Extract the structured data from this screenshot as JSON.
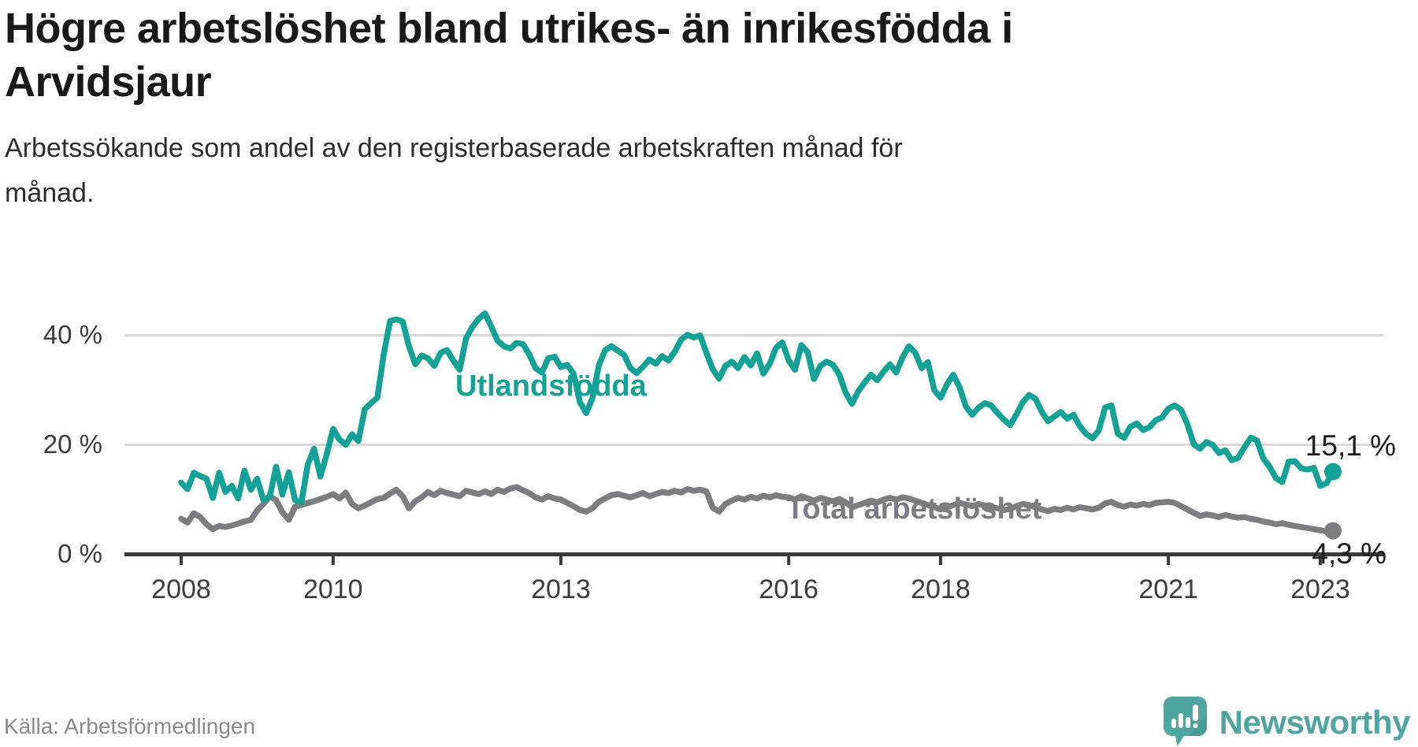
{
  "header": {
    "title_line1": "Högre arbetslöshet bland utrikes- än inrikesfödda i",
    "title_line2": "Arvidsjaur",
    "subtitle_line1": "Arbetssökande som andel av den registerbaserade arbetskraften månad för",
    "subtitle_line2": "månad."
  },
  "footer": {
    "source": "Källa: Arbetsförmedlingen"
  },
  "logo": {
    "text": "Newsworthy",
    "color": "#4fa5a0"
  },
  "chart_data": {
    "type": "line",
    "title": "Högre arbetslöshet bland utrikes- än inrikesfödda i Arvidsjaur",
    "subtitle": "Arbetssökande som andel av den registerbaserade arbetskraften månad för månad.",
    "x_start": "2008-01",
    "x_end": "2023-03",
    "x_unit": "month",
    "grid": "horizontal",
    "ylim": [
      0,
      46
    ],
    "y_ticks": [
      {
        "label": "0 %",
        "value": 0
      },
      {
        "label": "20 %",
        "value": 20
      },
      {
        "label": "40 %",
        "value": 40
      }
    ],
    "x_ticks": [
      {
        "label": "2008",
        "year": 2008
      },
      {
        "label": "2010",
        "year": 2010
      },
      {
        "label": "2013",
        "year": 2013
      },
      {
        "label": "2016",
        "year": 2016
      },
      {
        "label": "2018",
        "year": 2018
      },
      {
        "label": "2021",
        "year": 2021
      },
      {
        "label": "2023",
        "year": 2023
      }
    ],
    "series": [
      {
        "name": "Utlandsfödda",
        "color": "#14a196",
        "end_label": "15,1 %",
        "end_value": 15.1,
        "values": [
          13.1,
          11.9,
          14.9,
          14.3,
          13.8,
          10.3,
          14.9,
          11.4,
          12.5,
          10.2,
          15.3,
          11.8,
          13.8,
          9.9,
          10.6,
          16.0,
          10.9,
          15.0,
          9.9,
          9.5,
          16.4,
          19.3,
          14.2,
          18.3,
          22.9,
          21.0,
          20.0,
          21.9,
          20.7,
          26.5,
          27.6,
          28.6,
          36.5,
          42.6,
          42.9,
          42.5,
          38.0,
          34.7,
          36.3,
          35.8,
          34.4,
          36.8,
          37.3,
          35.4,
          33.7,
          39.4,
          41.5,
          43.0,
          44.0,
          41.6,
          39.0,
          38.0,
          37.6,
          38.6,
          38.4,
          36.5,
          34.0,
          33.2,
          35.8,
          36.1,
          34.2,
          34.6,
          33.0,
          27.8,
          25.8,
          28.5,
          34.5,
          37.3,
          38.0,
          37.2,
          36.4,
          34.0,
          33.1,
          34.3,
          35.6,
          34.8,
          36.2,
          35.4,
          37.0,
          39.2,
          40.1,
          39.6,
          40.0,
          36.8,
          33.8,
          32.1,
          34.4,
          35.2,
          34.0,
          36.0,
          34.5,
          36.7,
          33.0,
          34.8,
          37.7,
          38.7,
          35.4,
          33.7,
          38.2,
          36.9,
          32.0,
          34.4,
          35.2,
          34.6,
          32.8,
          29.5,
          27.5,
          29.8,
          31.4,
          32.8,
          31.8,
          33.4,
          34.7,
          33.2,
          36.0,
          38.0,
          36.8,
          34.0,
          35.1,
          30.0,
          28.6,
          31.0,
          32.8,
          30.5,
          27.0,
          25.5,
          26.8,
          27.6,
          27.2,
          25.8,
          24.6,
          23.6,
          25.6,
          27.8,
          29.1,
          28.4,
          26.0,
          24.3,
          25.2,
          26.0,
          24.8,
          25.5,
          23.4,
          22.0,
          21.2,
          22.6,
          26.8,
          27.2,
          22.0,
          21.3,
          23.3,
          23.9,
          22.7,
          23.2,
          24.5,
          25.0,
          26.6,
          27.2,
          26.4,
          23.8,
          20.1,
          19.3,
          20.5,
          20.0,
          18.5,
          19.0,
          17.2,
          17.6,
          19.5,
          21.3,
          20.8,
          17.5,
          16.0,
          13.9,
          13.2,
          16.9,
          17.0,
          15.7,
          15.5,
          15.8,
          12.5,
          13.0,
          15.1
        ]
      },
      {
        "name": "Total arbetslöshet",
        "color": "#7d7d81",
        "end_label": "4,3 %",
        "end_value": 4.3,
        "values": [
          6.5,
          5.8,
          7.5,
          6.8,
          5.5,
          4.6,
          5.2,
          5.0,
          5.3,
          5.6,
          6.0,
          6.3,
          8.0,
          9.2,
          10.6,
          9.9,
          7.7,
          6.3,
          8.7,
          9.0,
          9.4,
          9.7,
          10.1,
          10.5,
          11.0,
          10.2,
          11.3,
          9.2,
          8.4,
          8.9,
          9.5,
          10.1,
          10.3,
          11.1,
          11.8,
          10.6,
          8.4,
          9.7,
          10.4,
          11.4,
          10.8,
          11.6,
          11.2,
          10.9,
          10.6,
          11.6,
          11.3,
          11.0,
          11.5,
          11.0,
          11.8,
          11.4,
          12.0,
          12.3,
          11.7,
          11.2,
          10.4,
          10.0,
          10.6,
          10.2,
          10.0,
          9.4,
          8.8,
          8.1,
          7.8,
          8.4,
          9.6,
          10.2,
          10.8,
          11.0,
          10.7,
          10.4,
          10.8,
          11.2,
          10.6,
          11.0,
          11.4,
          11.2,
          11.6,
          11.3,
          11.9,
          11.6,
          11.8,
          11.5,
          8.5,
          7.8,
          9.2,
          9.8,
          10.3,
          10.0,
          10.5,
          10.2,
          10.7,
          10.4,
          10.8,
          10.5,
          10.4,
          10.0,
          10.6,
          10.2,
          9.8,
          10.3,
          10.0,
          9.7,
          10.1,
          9.5,
          8.6,
          9.0,
          9.4,
          9.8,
          9.5,
          10.0,
          10.3,
          10.0,
          10.4,
          10.2,
          9.8,
          9.4,
          9.0,
          8.6,
          8.2,
          8.6,
          9.0,
          9.4,
          9.1,
          8.8,
          9.2,
          8.9,
          8.6,
          8.4,
          8.1,
          8.3,
          8.8,
          9.2,
          9.0,
          8.6,
          8.2,
          7.9,
          8.3,
          8.1,
          8.5,
          8.2,
          8.6,
          8.4,
          8.2,
          8.5,
          9.3,
          9.6,
          9.0,
          8.7,
          9.1,
          8.9,
          9.2,
          9.0,
          9.4,
          9.5,
          9.6,
          9.4,
          8.8,
          8.2,
          7.6,
          7.0,
          7.3,
          7.1,
          6.8,
          7.2,
          6.9,
          6.7,
          6.8,
          6.5,
          6.3,
          6.0,
          5.8,
          5.5,
          5.7,
          5.4,
          5.2,
          5.0,
          4.8,
          4.6,
          4.4,
          4.2,
          4.3
        ]
      }
    ]
  }
}
